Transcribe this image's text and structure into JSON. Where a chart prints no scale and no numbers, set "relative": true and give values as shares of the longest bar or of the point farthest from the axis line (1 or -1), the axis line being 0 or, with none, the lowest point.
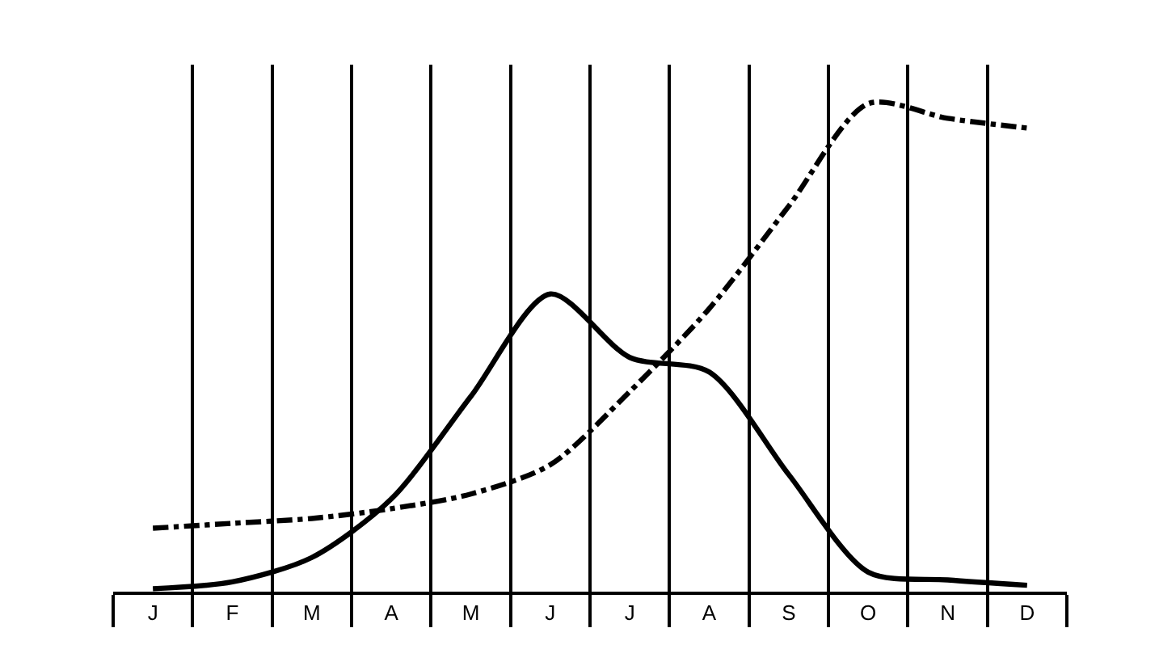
{
  "chart_data": {
    "type": "line",
    "relative": true,
    "categories": [
      "J",
      "F",
      "M",
      "A",
      "M",
      "J",
      "J",
      "A",
      "S",
      "O",
      "N",
      "D"
    ],
    "series": [
      {
        "color": "#000000",
        "line_style": "solid",
        "values": [
          0.006,
          0.02,
          0.07,
          0.19,
          0.4,
          0.61,
          0.48,
          0.45,
          0.24,
          0.04,
          0.024,
          0.013
        ]
      },
      {
        "color": "#000000",
        "line_style": "dashdot",
        "values": [
          0.13,
          0.14,
          0.15,
          0.17,
          0.2,
          0.26,
          0.41,
          0.58,
          0.79,
          1.0,
          0.97,
          0.95
        ]
      }
    ],
    "grid": "x",
    "marker": "none"
  }
}
